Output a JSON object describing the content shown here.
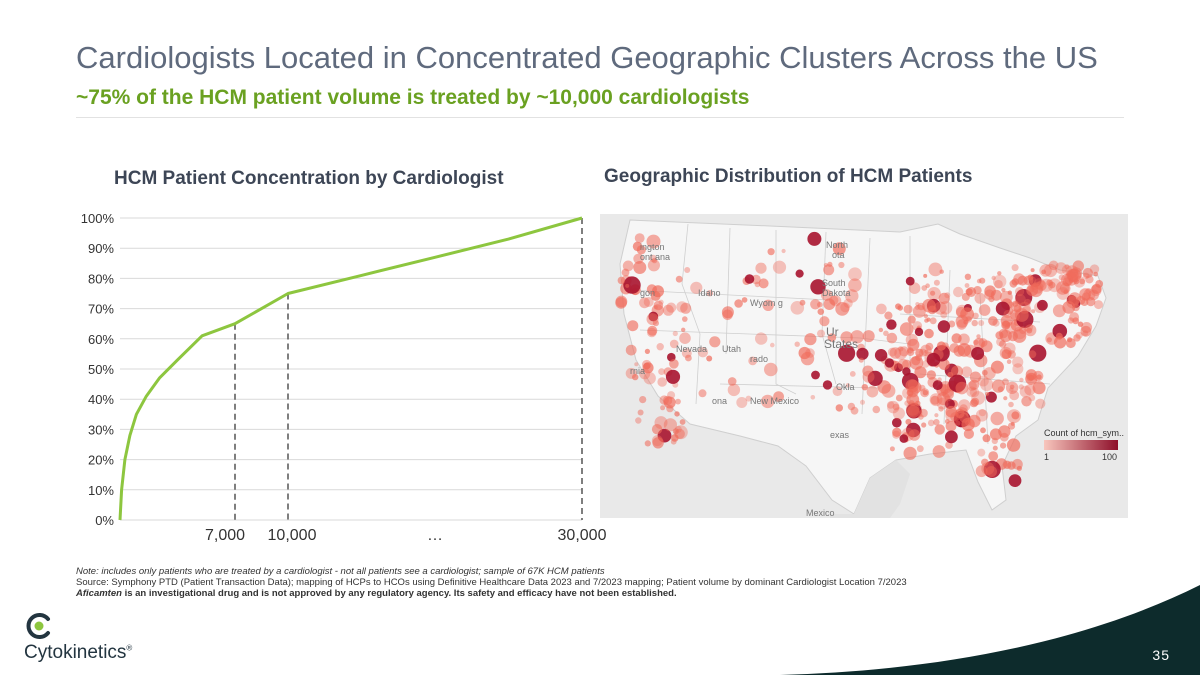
{
  "slide": {
    "title": "Cardiologists Located in Concentrated Geographic Clusters Across the US",
    "subtitle": "~75% of the HCM patient volume is treated by ~10,000 cardiologists",
    "page_number": "35"
  },
  "chart_data": [
    {
      "type": "line",
      "title": "HCM Patient Concentration by Cardiologist",
      "x": [
        0,
        100,
        300,
        600,
        1000,
        1600,
        2400,
        3500,
        5000,
        7000,
        10000,
        15000,
        20000,
        25000,
        30000
      ],
      "series": [
        {
          "values": [
            0,
            10,
            20,
            28,
            35,
            41,
            47,
            53,
            61,
            65,
            75,
            81,
            87,
            93,
            100
          ]
        }
      ],
      "y_ticks": [
        "100%",
        "90%",
        "80%",
        "70%",
        "60%",
        "50%",
        "40%",
        "30%",
        "20%",
        "10%",
        "0%"
      ],
      "x_labels": [
        "7,000",
        "10,000",
        "…",
        "30,000"
      ],
      "reference_lines_x": [
        7000,
        10000,
        30000
      ],
      "ylim": [
        0,
        100
      ],
      "xlim": [
        0,
        30000
      ],
      "grid": true,
      "line_color": "#8dc63f"
    },
    {
      "type": "map",
      "title": "Geographic Distribution of HCM Patients",
      "legend": {
        "title": "Count of hcm_sym..",
        "min_label": "1",
        "max_label": "100"
      },
      "map_labels": [
        "ington",
        "ont ana",
        "North",
        "ota",
        "South",
        "Dakota",
        "Idaho",
        "gon",
        "Wyom g",
        "Nevada",
        "Utah",
        "rado",
        "Ur",
        "States",
        "rnia",
        "ona",
        "New Mexico",
        "Okla",
        "exas",
        "Mexico"
      ]
    }
  ],
  "notes": {
    "note": "Note: includes only patients who are treated by a cardiologist - not all patients see a cardiologist; sample of 67K HCM patients",
    "source": "Source: Symphony PTD (Patient Transaction Data); mapping of HCPs to HCOs using Definitive Healthcare Data 2023 and 7/2023 mapping; Patient volume by dominant Cardiologist Location 7/2023",
    "disclaimer_drug": "Aficamten",
    "disclaimer_text": " is an investigational drug and is not approved by any regulatory agency. Its safety and efficacy have not been established."
  },
  "brand": {
    "name": "Cytokinetics",
    "registered_mark": "®",
    "colors": {
      "dark_teal": "#0d2b2c",
      "green": "#6aa121",
      "logo_green": "#8dc63f"
    }
  }
}
